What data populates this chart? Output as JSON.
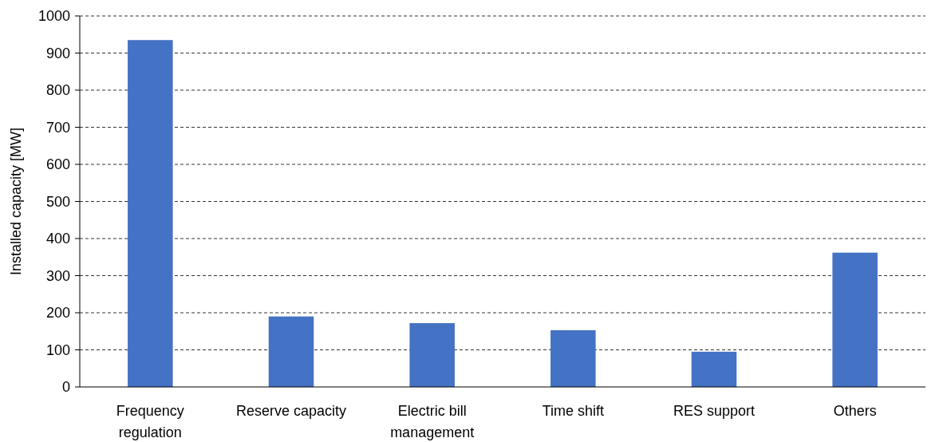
{
  "chart_data": {
    "type": "bar",
    "ylabel": "Installed capacity [MW]",
    "categories": [
      "Frequency regulation",
      "Reserve capacity",
      "Electric bill management",
      "Time shift",
      "RES support",
      "Others"
    ],
    "values": [
      935,
      190,
      172,
      153,
      95,
      362
    ],
    "color": "#4472c4",
    "ylim": [
      0,
      1000
    ],
    "yticks": [
      0,
      100,
      200,
      300,
      400,
      500,
      600,
      700,
      800,
      900,
      1000
    ],
    "grid": "y"
  }
}
